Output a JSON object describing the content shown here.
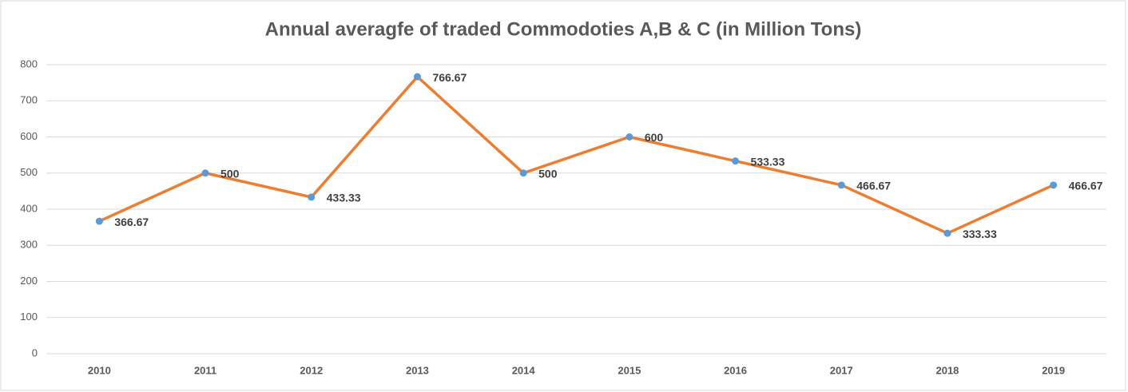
{
  "chart_data": {
    "type": "line",
    "title": "Annual averagfe of traded Commodoties A,B & C (in Million Tons)",
    "categories": [
      "2010",
      "2011",
      "2012",
      "2013",
      "2014",
      "2015",
      "2016",
      "2017",
      "2018",
      "2019"
    ],
    "values": [
      366.67,
      500,
      433.33,
      766.67,
      500,
      600,
      533.33,
      466.67,
      333.33,
      466.67
    ],
    "color": "#ed7d31",
    "marker_color": "#5b9bd5",
    "ylim": [
      0,
      800
    ],
    "yticks": [
      0,
      100,
      200,
      300,
      400,
      500,
      600,
      700,
      800
    ],
    "grid": true
  }
}
